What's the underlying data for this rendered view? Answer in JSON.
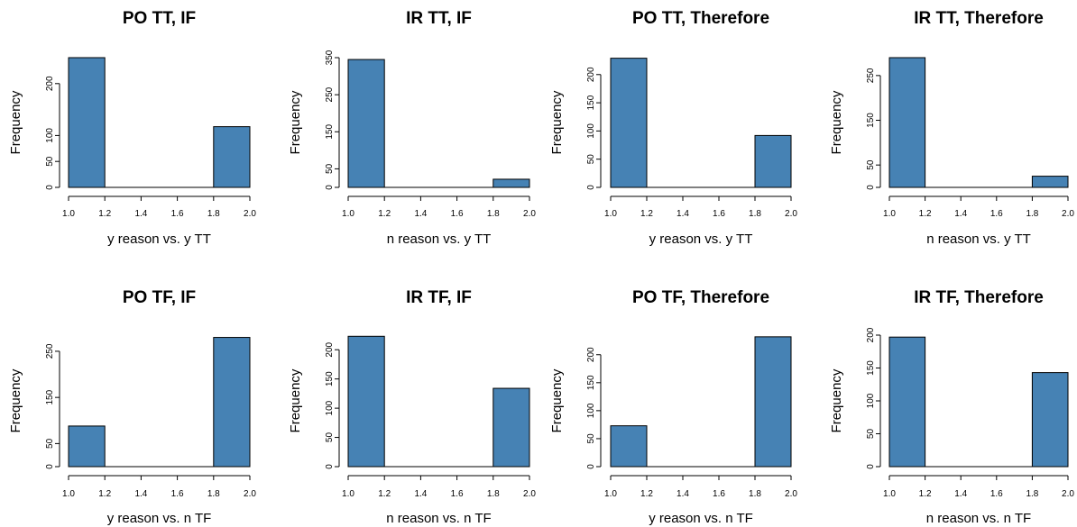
{
  "chart_data": [
    {
      "type": "bar",
      "title": "PO TT, IF",
      "xlabel": "y reason vs. y TT",
      "ylabel": "Frequency",
      "xlim": [
        1.0,
        2.0
      ],
      "x_ticks": [
        "1.0",
        "1.2",
        "1.4",
        "1.6",
        "1.8",
        "2.0"
      ],
      "ylim": [
        0,
        250
      ],
      "y_ticks": [
        0,
        50,
        100,
        200
      ],
      "bins": [
        [
          1.0,
          1.2
        ],
        [
          1.8,
          2.0
        ]
      ],
      "values": [
        250,
        117
      ],
      "bar_color": "#4682b4"
    },
    {
      "type": "bar",
      "title": "IR TT, IF",
      "xlabel": "n reason vs. y TT",
      "ylabel": "Frequency",
      "xlim": [
        1.0,
        2.0
      ],
      "x_ticks": [
        "1.0",
        "1.2",
        "1.4",
        "1.6",
        "1.8",
        "2.0"
      ],
      "ylim": [
        0,
        350
      ],
      "y_ticks": [
        0,
        50,
        150,
        250,
        350
      ],
      "bins": [
        [
          1.0,
          1.2
        ],
        [
          1.8,
          2.0
        ]
      ],
      "values": [
        345,
        22
      ],
      "bar_color": "#4682b4"
    },
    {
      "type": "bar",
      "title": "PO TT, Therefore",
      "xlabel": "y reason vs. y TT",
      "ylabel": "Frequency",
      "xlim": [
        1.0,
        2.0
      ],
      "x_ticks": [
        "1.0",
        "1.2",
        "1.4",
        "1.6",
        "1.8",
        "2.0"
      ],
      "ylim": [
        0,
        230
      ],
      "y_ticks": [
        0,
        50,
        100,
        150,
        200
      ],
      "bins": [
        [
          1.0,
          1.2
        ],
        [
          1.8,
          2.0
        ]
      ],
      "values": [
        229,
        92
      ],
      "bar_color": "#4682b4"
    },
    {
      "type": "bar",
      "title": "IR TT, Therefore",
      "xlabel": "n reason vs. y TT",
      "ylabel": "Frequency",
      "xlim": [
        1.0,
        2.0
      ],
      "x_ticks": [
        "1.0",
        "1.2",
        "1.4",
        "1.6",
        "1.8",
        "2.0"
      ],
      "ylim": [
        0,
        290
      ],
      "y_ticks": [
        0,
        50,
        150,
        250
      ],
      "bins": [
        [
          1.0,
          1.2
        ],
        [
          1.8,
          2.0
        ]
      ],
      "values": [
        290,
        25
      ],
      "bar_color": "#4682b4"
    },
    {
      "type": "bar",
      "title": "PO TF, IF",
      "xlabel": "y reason vs. n TF",
      "ylabel": "Frequency",
      "xlim": [
        1.0,
        2.0
      ],
      "x_ticks": [
        "1.0",
        "1.2",
        "1.4",
        "1.6",
        "1.8",
        "2.0"
      ],
      "ylim": [
        0,
        285
      ],
      "y_ticks": [
        0,
        50,
        150,
        250
      ],
      "bins": [
        [
          1.0,
          1.2
        ],
        [
          1.8,
          2.0
        ]
      ],
      "values": [
        88,
        280
      ],
      "bar_color": "#4682b4"
    },
    {
      "type": "bar",
      "title": "IR TF, IF",
      "xlabel": "n reason vs. n TF",
      "ylabel": "Frequency",
      "xlim": [
        1.0,
        2.0
      ],
      "x_ticks": [
        "1.0",
        "1.2",
        "1.4",
        "1.6",
        "1.8",
        "2.0"
      ],
      "ylim": [
        0,
        225
      ],
      "y_ticks": [
        0,
        50,
        100,
        150,
        200
      ],
      "bins": [
        [
          1.0,
          1.2
        ],
        [
          1.8,
          2.0
        ]
      ],
      "values": [
        223,
        134
      ],
      "bar_color": "#4682b4"
    },
    {
      "type": "bar",
      "title": "PO TF, Therefore",
      "xlabel": "y reason vs. n TF",
      "ylabel": "Frequency",
      "xlim": [
        1.0,
        2.0
      ],
      "x_ticks": [
        "1.0",
        "1.2",
        "1.4",
        "1.6",
        "1.8",
        "2.0"
      ],
      "ylim": [
        0,
        235
      ],
      "y_ticks": [
        0,
        50,
        100,
        150,
        200
      ],
      "bins": [
        [
          1.0,
          1.2
        ],
        [
          1.8,
          2.0
        ]
      ],
      "values": [
        73,
        232
      ],
      "bar_color": "#4682b4"
    },
    {
      "type": "bar",
      "title": "IR TF, Therefore",
      "xlabel": "n reason vs. n TF",
      "ylabel": "Frequency",
      "xlim": [
        1.0,
        2.0
      ],
      "x_ticks": [
        "1.0",
        "1.2",
        "1.4",
        "1.6",
        "1.8",
        "2.0"
      ],
      "ylim": [
        0,
        200
      ],
      "y_ticks": [
        0,
        50,
        100,
        150,
        200
      ],
      "bins": [
        [
          1.0,
          1.2
        ],
        [
          1.8,
          2.0
        ]
      ],
      "values": [
        197,
        143
      ],
      "bar_color": "#4682b4"
    }
  ]
}
